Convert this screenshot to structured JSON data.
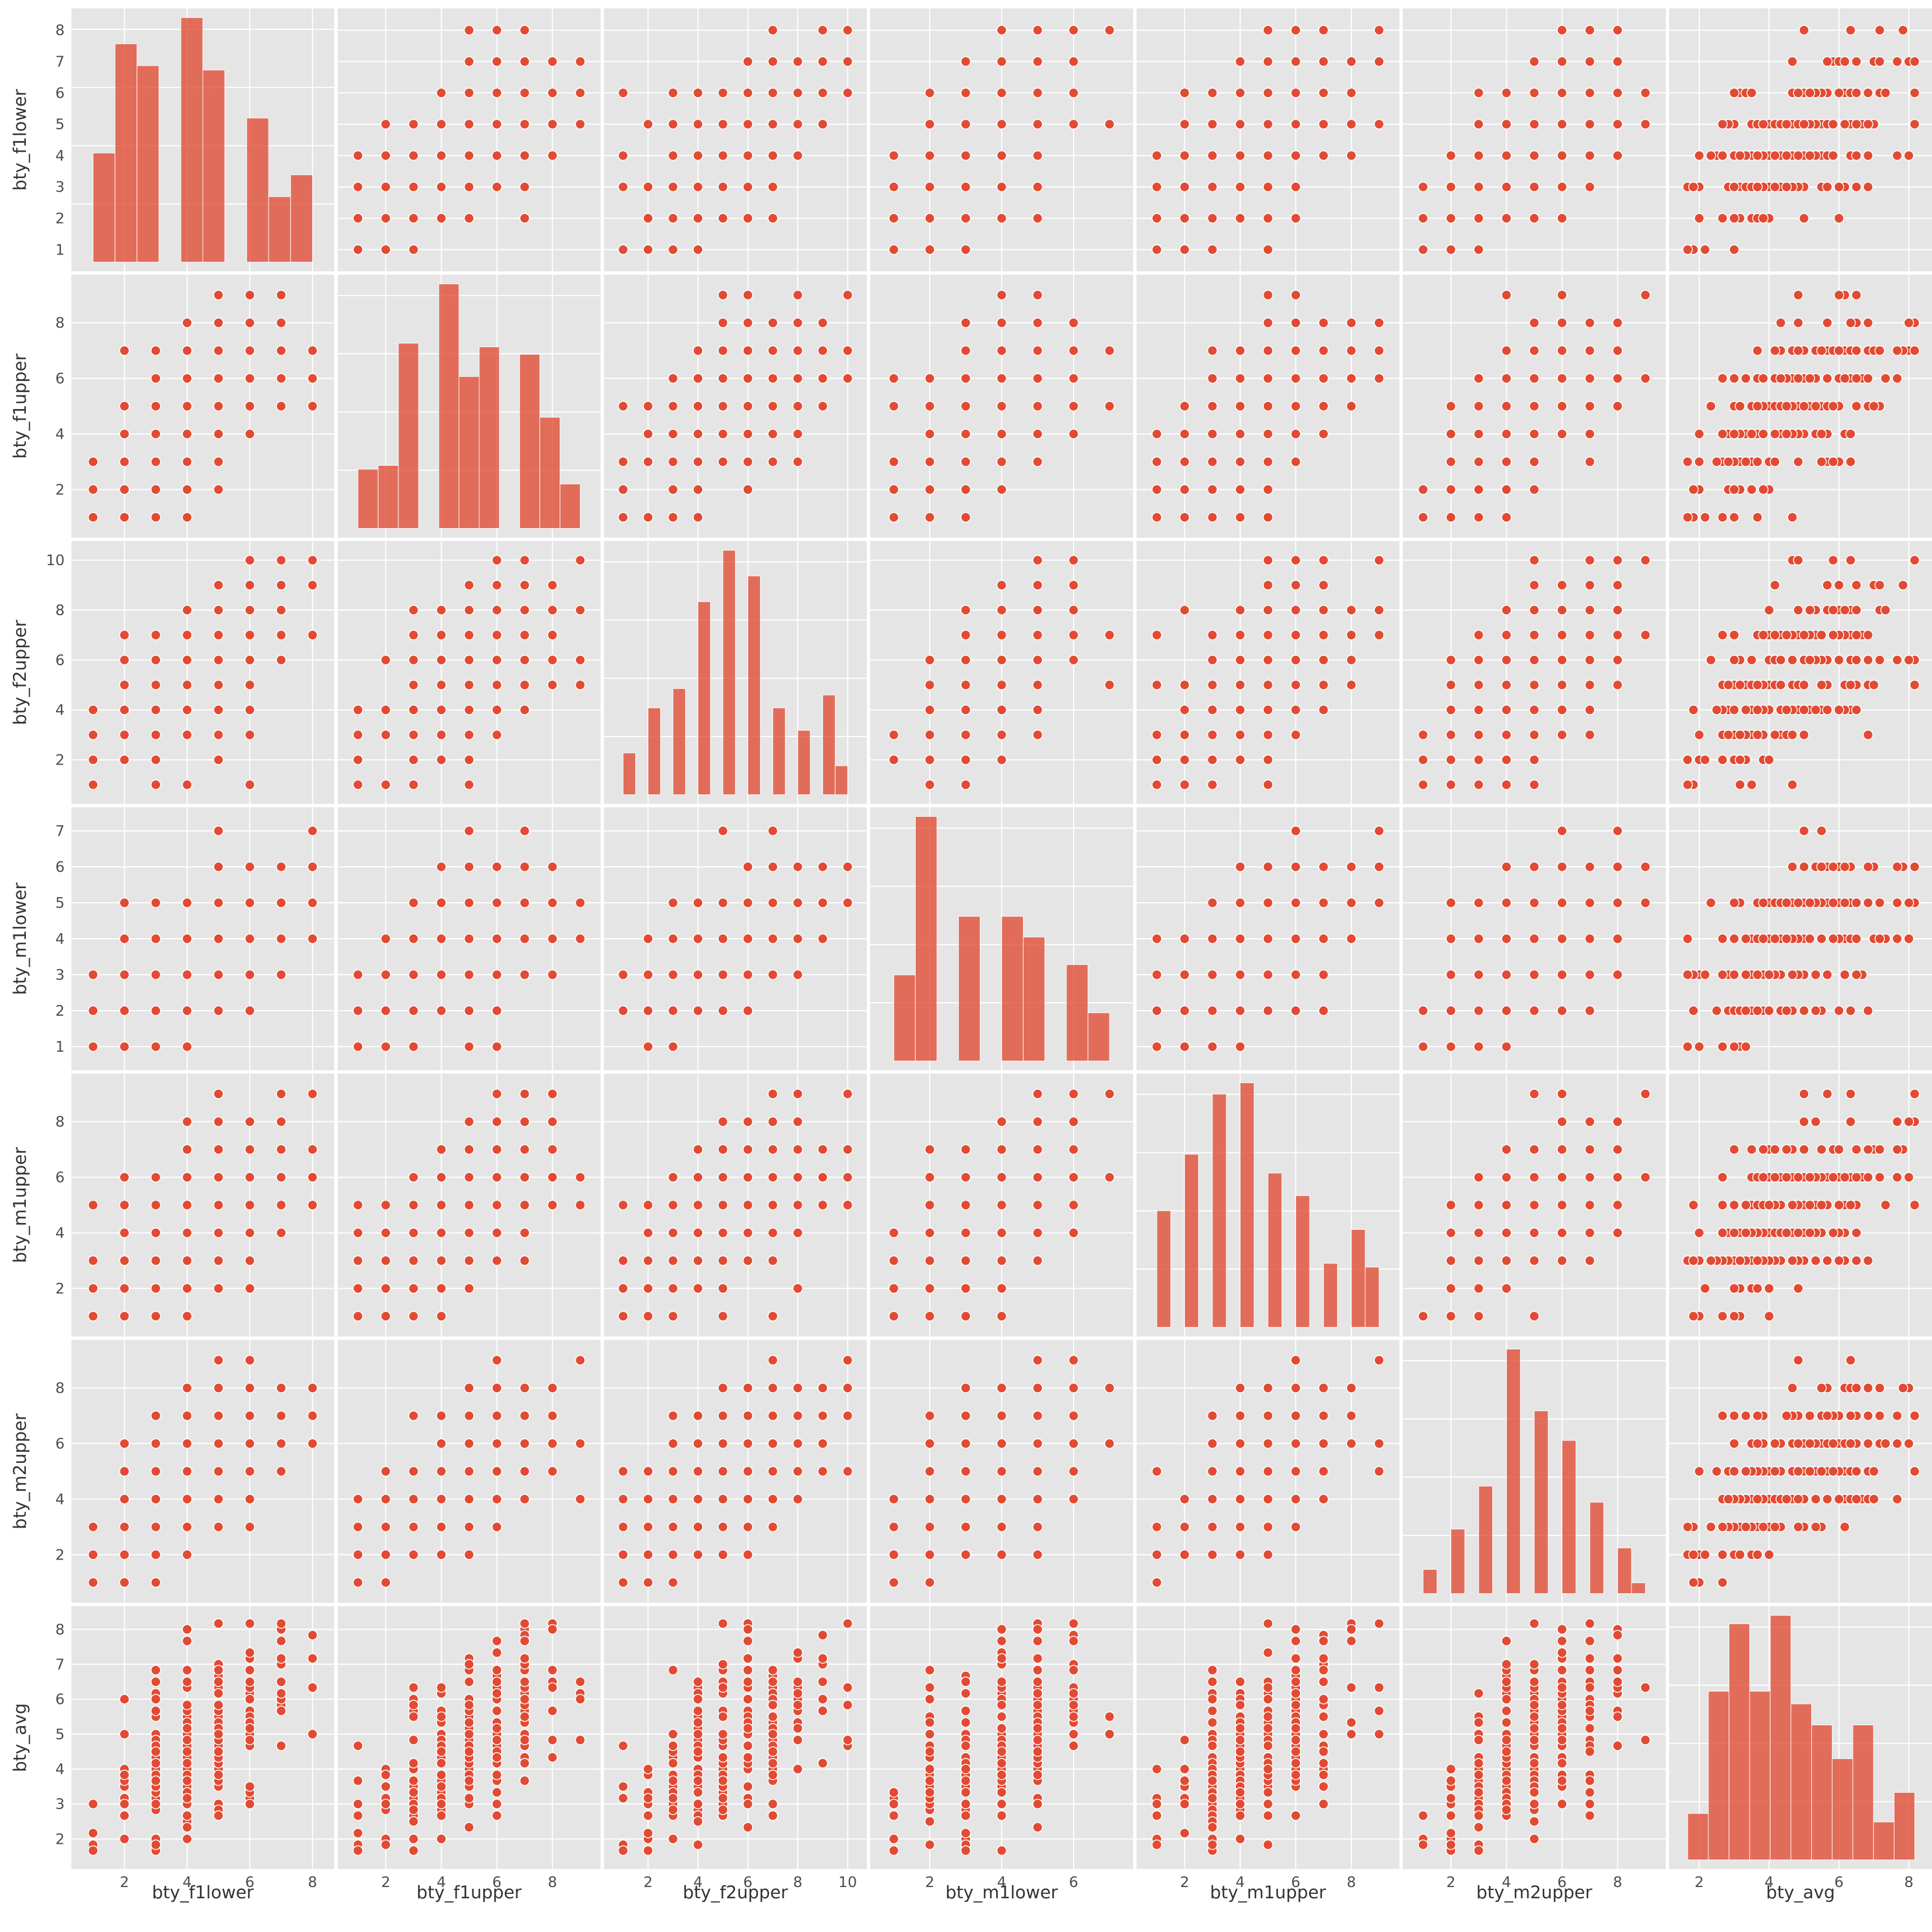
{
  "chart_data": {
    "type": "scatter",
    "subtype": "pairplot",
    "style": "ggplot",
    "grid": true,
    "colors": {
      "panel": "#e5e5e5",
      "grid": "#ffffff",
      "mark": "#e24a33",
      "mark_edge": "#ffffff",
      "tick_label": "#4d4d4d",
      "axis_label": "#333333",
      "background": "#ffffff"
    },
    "variables": [
      {
        "name": "bty_f1lower",
        "range": [
          0.6,
          8.4
        ],
        "ticks": [
          2,
          4,
          6,
          8
        ],
        "y_ticks": [
          1,
          2,
          3,
          4,
          5,
          6,
          7,
          8
        ],
        "distinct": [
          1,
          2,
          3,
          4,
          5,
          6,
          7,
          8
        ],
        "hist": [
          25,
          50,
          45,
          0,
          56,
          44,
          0,
          33,
          15,
          20
        ]
      },
      {
        "name": "bty_f1upper",
        "range": [
          0.6,
          9.4
        ],
        "ticks": [
          2,
          4,
          6,
          8
        ],
        "y_ticks": [
          2,
          4,
          6,
          8
        ],
        "distinct": [
          1,
          2,
          3,
          4,
          5,
          6,
          7,
          8,
          9
        ],
        "hist": [
          16,
          17,
          50,
          0,
          66,
          41,
          49,
          0,
          47,
          30,
          12
        ]
      },
      {
        "name": "bty_f2upper",
        "range": [
          0.6,
          10.4
        ],
        "ticks": [
          2,
          4,
          6,
          8,
          10
        ],
        "y_ticks": [
          2,
          4,
          6,
          8,
          10
        ],
        "distinct": [
          1,
          2,
          3,
          4,
          5,
          6,
          7,
          8,
          9,
          10
        ],
        "hist": [
          13,
          0,
          27,
          0,
          33,
          0,
          60,
          0,
          76,
          0,
          68,
          0,
          27,
          0,
          20,
          0,
          31,
          9
        ]
      },
      {
        "name": "bty_m1lower",
        "range": [
          0.6,
          7.4
        ],
        "ticks": [
          2,
          4,
          6
        ],
        "y_ticks": [
          1,
          2,
          3,
          4,
          5,
          6,
          7
        ],
        "distinct": [
          1,
          2,
          3,
          4,
          5,
          6,
          7
        ],
        "hist": [
          25,
          71,
          0,
          42,
          0,
          42,
          36,
          0,
          28,
          14
        ]
      },
      {
        "name": "bty_m1upper",
        "range": [
          0.6,
          9.4
        ],
        "ticks": [
          2,
          4,
          6,
          8
        ],
        "y_ticks": [
          2,
          4,
          6,
          8
        ],
        "distinct": [
          1,
          2,
          3,
          4,
          5,
          6,
          7,
          8,
          9
        ],
        "hist": [
          31,
          0,
          46,
          0,
          62,
          0,
          65,
          0,
          41,
          0,
          35,
          0,
          17,
          0,
          26,
          16
        ]
      },
      {
        "name": "bty_m2upper",
        "range": [
          0.6,
          9.4
        ],
        "ticks": [
          2,
          4,
          6,
          8
        ],
        "y_ticks": [
          2,
          4,
          6,
          8
        ],
        "distinct": [
          1,
          2,
          3,
          4,
          5,
          6,
          7,
          8,
          9
        ],
        "hist": [
          9,
          0,
          24,
          0,
          40,
          0,
          91,
          0,
          68,
          0,
          57,
          0,
          34,
          0,
          17,
          4
        ]
      },
      {
        "name": "bty_avg",
        "range": [
          1.4,
          8.4
        ],
        "ticks": [
          2,
          4,
          6,
          8
        ],
        "y_ticks": [
          2,
          3,
          4,
          5,
          6,
          7,
          8
        ],
        "distinct": null,
        "hist": [
          11,
          40,
          56,
          40,
          58,
          37,
          32,
          24,
          32,
          9,
          16
        ]
      }
    ]
  },
  "axis_labels": {
    "x": [
      "bty_f1lower",
      "bty_f1upper",
      "bty_f2upper",
      "bty_m1lower",
      "bty_m1upper",
      "bty_m2upper",
      "bty_avg"
    ],
    "y": [
      "bty_f1lower",
      "bty_f1upper",
      "bty_f2upper",
      "bty_m1lower",
      "bty_m1upper",
      "bty_m2upper",
      "bty_avg"
    ]
  }
}
